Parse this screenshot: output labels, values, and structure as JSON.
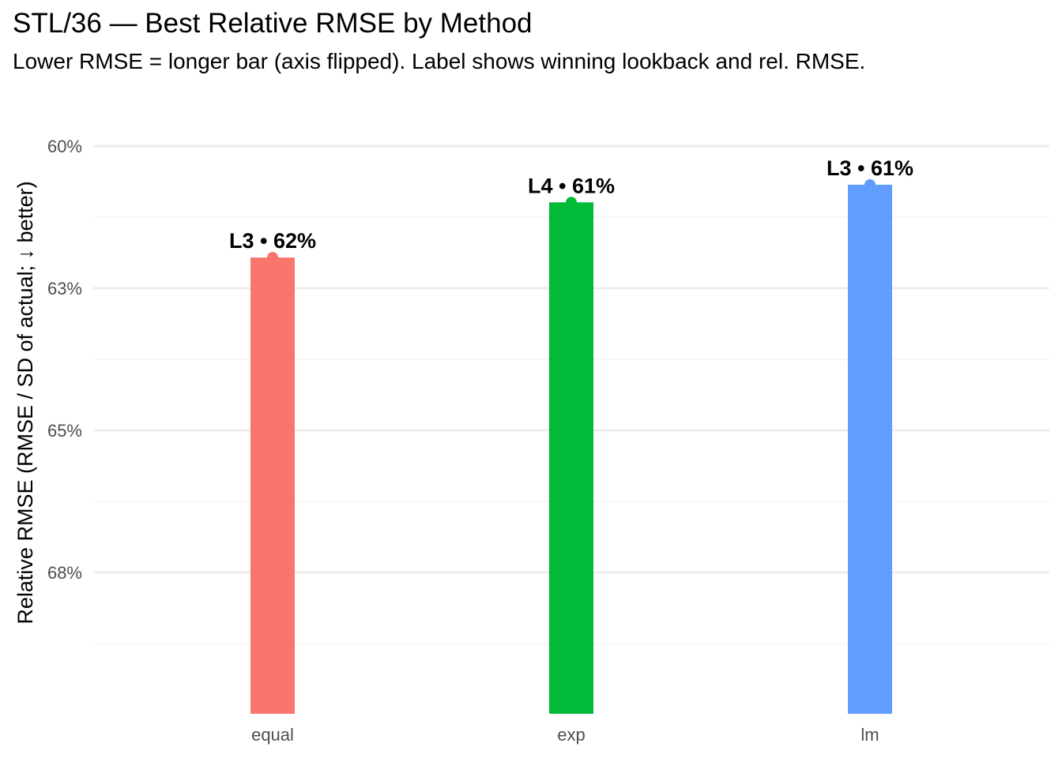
{
  "title": "STL/36 — Best Relative RMSE by Method",
  "subtitle": "Lower RMSE = longer bar (axis flipped). Label shows winning lookback and rel. RMSE.",
  "chart_data": {
    "type": "bar",
    "title": "STL/36 — Best Relative RMSE by Method",
    "subtitle": "Lower RMSE = longer bar (axis flipped). Label shows winning lookback and rel. RMSE.",
    "xlabel": "",
    "ylabel": "Relative RMSE (RMSE / SD of actual; ↓ better)",
    "y_reversed": true,
    "ylim": [
      0.6,
      0.7
    ],
    "yticks": [
      0.6,
      0.625,
      0.65,
      0.675
    ],
    "ytick_labels": [
      "60%",
      "63%",
      "65%",
      "68%"
    ],
    "categories": [
      "equal",
      "exp",
      "lm"
    ],
    "values": [
      0.6196,
      0.6099,
      0.6068
    ],
    "data_labels": [
      "L3 • 62%",
      "L4 • 61%",
      "L3 • 61%"
    ],
    "colors": [
      "#F8766D",
      "#00BA38",
      "#619CFF"
    ],
    "grid": true,
    "legend": "none"
  }
}
